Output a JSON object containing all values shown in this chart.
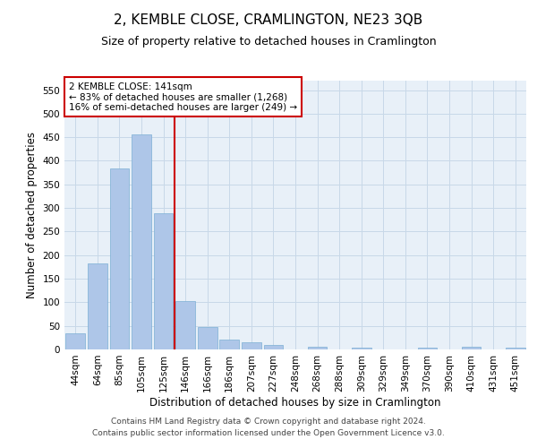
{
  "title": "2, KEMBLE CLOSE, CRAMLINGTON, NE23 3QB",
  "subtitle": "Size of property relative to detached houses in Cramlington",
  "xlabel": "Distribution of detached houses by size in Cramlington",
  "ylabel": "Number of detached properties",
  "categories": [
    "44sqm",
    "64sqm",
    "85sqm",
    "105sqm",
    "125sqm",
    "146sqm",
    "166sqm",
    "186sqm",
    "207sqm",
    "227sqm",
    "248sqm",
    "268sqm",
    "288sqm",
    "309sqm",
    "329sqm",
    "349sqm",
    "370sqm",
    "390sqm",
    "410sqm",
    "431sqm",
    "451sqm"
  ],
  "values": [
    35,
    182,
    383,
    456,
    288,
    103,
    47,
    21,
    16,
    9,
    0,
    5,
    0,
    4,
    0,
    0,
    3,
    0,
    5,
    0,
    4
  ],
  "bar_color": "#aec6e8",
  "bar_edge_color": "#7bafd4",
  "vline_color": "#cc0000",
  "annotation_title": "2 KEMBLE CLOSE: 141sqm",
  "annotation_line1": "← 83% of detached houses are smaller (1,268)",
  "annotation_line2": "16% of semi-detached houses are larger (249) →",
  "annotation_box_color": "#cc0000",
  "annotation_bg": "#ffffff",
  "ylim": [
    0,
    570
  ],
  "yticks": [
    0,
    50,
    100,
    150,
    200,
    250,
    300,
    350,
    400,
    450,
    500,
    550
  ],
  "footer_line1": "Contains HM Land Registry data © Crown copyright and database right 2024.",
  "footer_line2": "Contains public sector information licensed under the Open Government Licence v3.0.",
  "bg_color": "#ffffff",
  "grid_color": "#c8d8e8",
  "title_fontsize": 11,
  "subtitle_fontsize": 9,
  "axis_label_fontsize": 8.5,
  "tick_fontsize": 7.5,
  "annotation_fontsize": 7.5,
  "footer_fontsize": 6.5
}
